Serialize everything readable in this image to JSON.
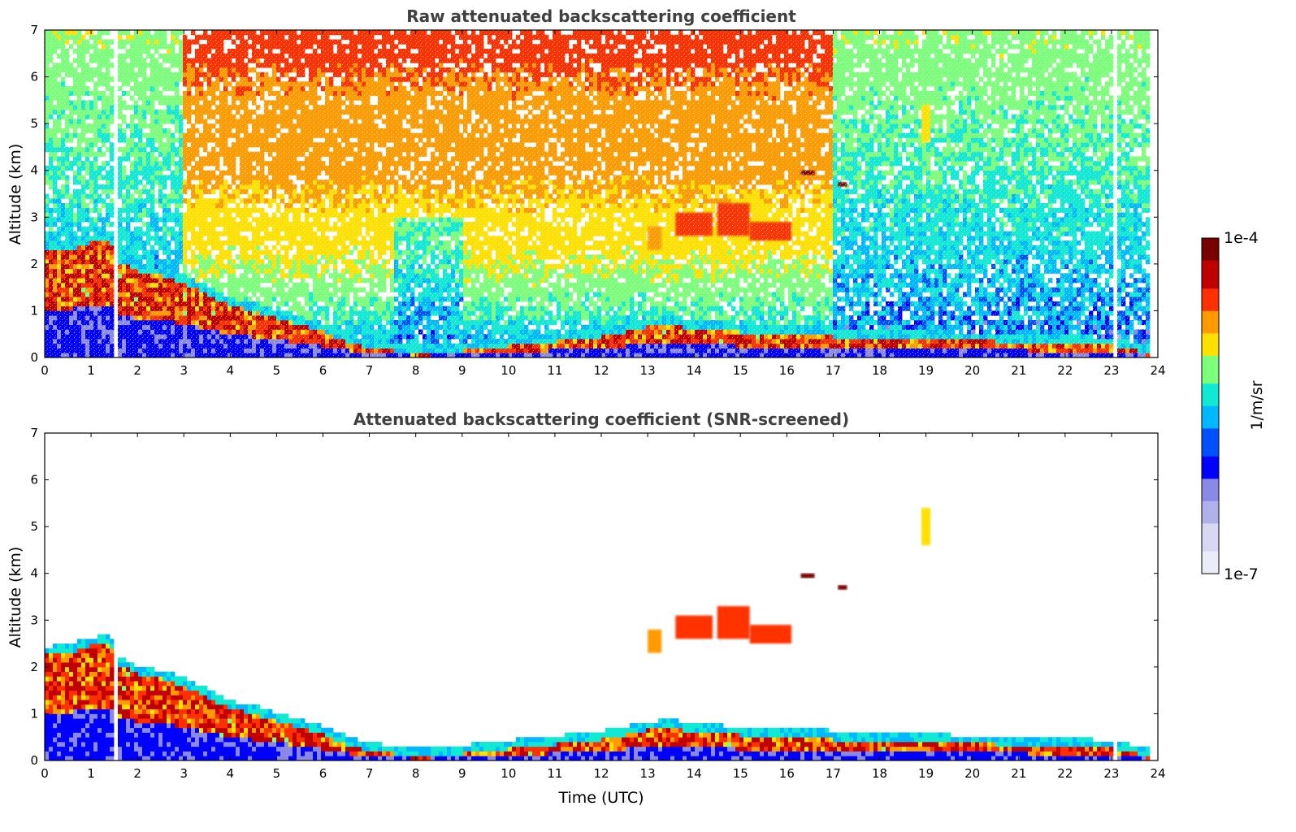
{
  "figure": {
    "colorbar": {
      "label": "1/m/sr",
      "max_label": "1e-4",
      "min_label": "1e-7",
      "scale": "log",
      "range": [
        1e-07,
        0.0001
      ],
      "colormap": [
        "#ececf8",
        "#d8d8f2",
        "#b0b0ea",
        "#8a8ae6",
        "#0000ff",
        "#0050ff",
        "#00b8ff",
        "#10ead4",
        "#7cff7a",
        "#ffe000",
        "#ff9a00",
        "#ff3000",
        "#c00000",
        "#7a0000"
      ]
    },
    "xlabel": "Time (UTC)"
  },
  "chart_data": [
    {
      "type": "heatmap",
      "title": "Raw attenuated backscattering coefficient",
      "xlabel": "",
      "ylabel": "Altitude (km)",
      "xlim": [
        0,
        24
      ],
      "ylim": [
        0,
        7
      ],
      "xticks": [
        "0",
        "1",
        "2",
        "3",
        "4",
        "5",
        "6",
        "7",
        "8",
        "9",
        "10",
        "11",
        "12",
        "13",
        "14",
        "15",
        "16",
        "17",
        "18",
        "19",
        "20",
        "21",
        "22",
        "23",
        "24"
      ],
      "yticks": [
        "0",
        "1",
        "2",
        "3",
        "4",
        "5",
        "6",
        "7"
      ],
      "data_gaps_utc": [
        [
          1.45,
          1.58
        ],
        [
          23.05,
          23.12
        ],
        [
          23.82,
          24.0
        ]
      ],
      "layer_top_km": {
        "time_utc": [
          0.0,
          0.5,
          1.0,
          1.4,
          1.6,
          2.0,
          2.5,
          3.0,
          3.5,
          4.0,
          4.5,
          5.0,
          5.5,
          6.0,
          6.5,
          7.0,
          7.5,
          8.0,
          8.5,
          9.0,
          9.5,
          10.0,
          10.5,
          11.0,
          11.5,
          12.0,
          12.5,
          13.0,
          13.5,
          14.0,
          15.0,
          16.0,
          16.7,
          17.0,
          18.0,
          19.0,
          20.0,
          21.0,
          22.0,
          23.0,
          23.8
        ],
        "altitude_km": [
          2.25,
          2.3,
          2.45,
          2.5,
          2.05,
          1.85,
          1.75,
          1.6,
          1.35,
          1.1,
          1.0,
          0.85,
          0.7,
          0.55,
          0.35,
          0.2,
          0.15,
          0.1,
          0.12,
          0.15,
          0.2,
          0.25,
          0.3,
          0.35,
          0.4,
          0.45,
          0.55,
          0.65,
          0.7,
          0.6,
          0.55,
          0.5,
          0.5,
          0.45,
          0.4,
          0.38,
          0.36,
          0.34,
          0.3,
          0.25,
          0.1
        ]
      },
      "elevated_layers": [
        {
          "time_utc": [
            13.0,
            13.3
          ],
          "altitude_km": [
            2.3,
            2.8
          ],
          "value": 2e-05
        },
        {
          "time_utc": [
            13.6,
            14.4
          ],
          "altitude_km": [
            2.6,
            3.1
          ],
          "value": 2.5e-05
        },
        {
          "time_utc": [
            14.5,
            15.2
          ],
          "altitude_km": [
            2.6,
            3.3
          ],
          "value": 3e-05
        },
        {
          "time_utc": [
            15.2,
            16.1
          ],
          "altitude_km": [
            2.5,
            2.9
          ],
          "value": 3.5e-05
        },
        {
          "time_utc": [
            16.3,
            16.6
          ],
          "altitude_km": [
            3.9,
            4.0
          ],
          "value": 8e-05
        },
        {
          "time_utc": [
            17.1,
            17.3
          ],
          "altitude_km": [
            3.65,
            3.75
          ],
          "value": 0.0001
        },
        {
          "time_utc": [
            18.9,
            19.1
          ],
          "altitude_km": [
            4.6,
            5.4
          ],
          "value": 1.2e-05
        }
      ]
    },
    {
      "type": "heatmap",
      "title": "Attenuated backscattering coefficient (SNR-screened)",
      "xlabel": "Time (UTC)",
      "ylabel": "Altitude (km)",
      "xlim": [
        0,
        24
      ],
      "ylim": [
        0,
        7
      ],
      "xticks": [
        "0",
        "1",
        "2",
        "3",
        "4",
        "5",
        "6",
        "7",
        "8",
        "9",
        "10",
        "11",
        "12",
        "13",
        "14",
        "15",
        "16",
        "17",
        "18",
        "19",
        "20",
        "21",
        "22",
        "23",
        "24"
      ],
      "yticks": [
        "0",
        "1",
        "2",
        "3",
        "4",
        "5",
        "6",
        "7"
      ],
      "screened": true
    }
  ]
}
